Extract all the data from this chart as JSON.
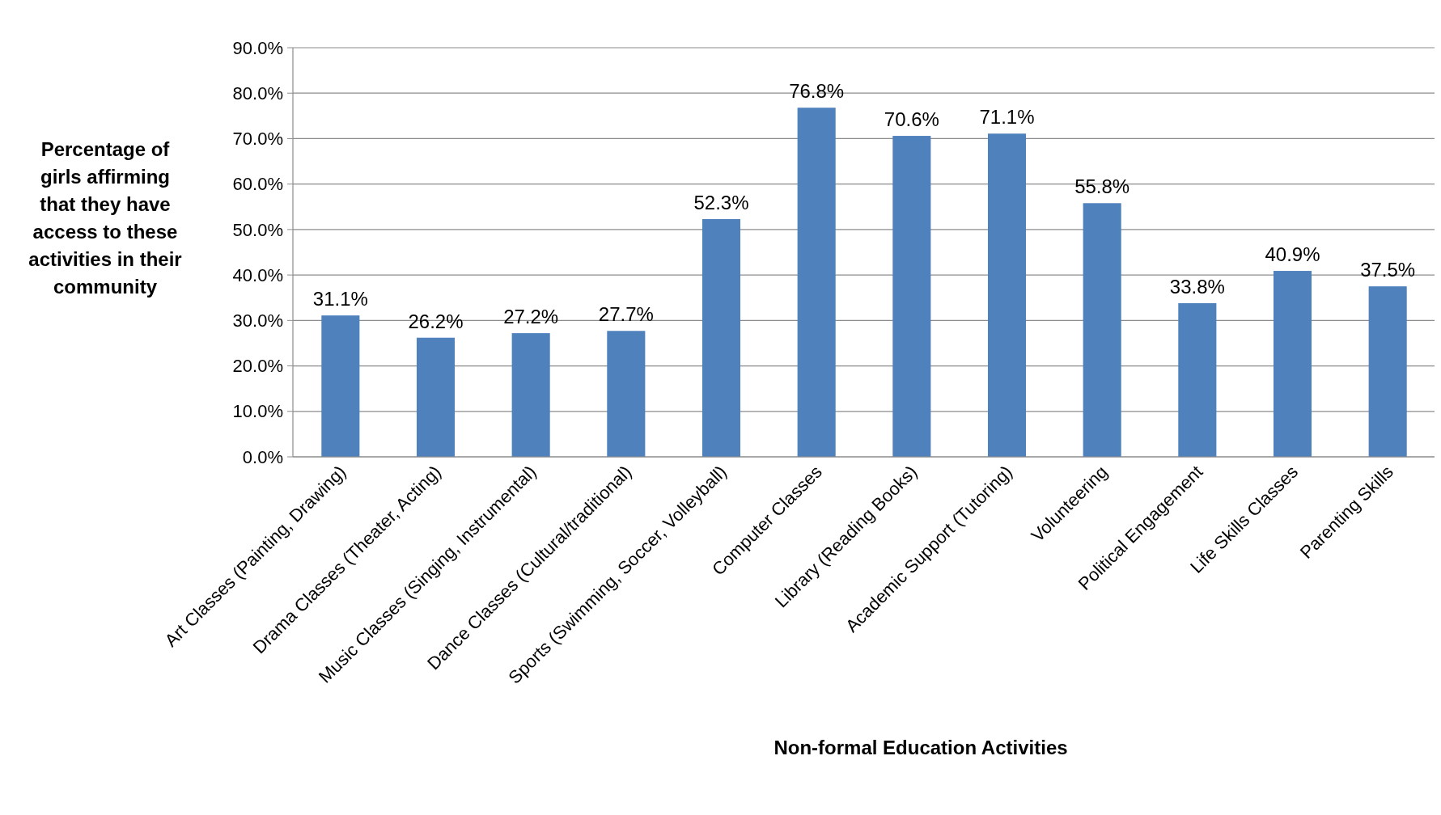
{
  "chart_data": {
    "type": "bar",
    "xlabel": "Non-formal Education Activities",
    "ylabel": "Percentage of\ngirls affirming\nthat they have\naccess to these\nactivities in their\ncommunity",
    "categories": [
      "Art Classes (Painting, Drawing)",
      "Drama Classes (Theater, Acting)",
      "Music Classes (Singing, Instrumental)",
      "Dance Classes (Cultural/traditional)",
      "Sports (Swimming, Soccer, Volleyball)",
      "Computer Classes",
      "Library (Reading Books)",
      "Academic Support (Tutoring)",
      "Volunteering",
      "Political Engagement",
      "Life Skills Classes",
      "Parenting Skills"
    ],
    "values": [
      31.1,
      26.2,
      27.2,
      27.7,
      52.3,
      76.8,
      70.6,
      71.1,
      55.8,
      33.8,
      40.9,
      37.5
    ],
    "value_labels": [
      "31.1%",
      "26.2%",
      "27.2%",
      "27.7%",
      "52.3%",
      "76.8%",
      "70.6%",
      "71.1%",
      "55.8%",
      "33.8%",
      "40.9%",
      "37.5%"
    ],
    "color": "#4f81bd",
    "ylim": [
      0,
      90
    ],
    "yticks": [
      {
        "value": 0,
        "label": "0.0%"
      },
      {
        "value": 10,
        "label": "10.0%"
      },
      {
        "value": 20,
        "label": "20.0%"
      },
      {
        "value": 30,
        "label": "30.0%"
      },
      {
        "value": 40,
        "label": "40.0%"
      },
      {
        "value": 50,
        "label": "50.0%"
      },
      {
        "value": 60,
        "label": "60.0%"
      },
      {
        "value": 70,
        "label": "70.0%"
      },
      {
        "value": 80,
        "label": "80.0%"
      },
      {
        "value": 90,
        "label": "90.0%"
      }
    ],
    "grid": "y"
  }
}
